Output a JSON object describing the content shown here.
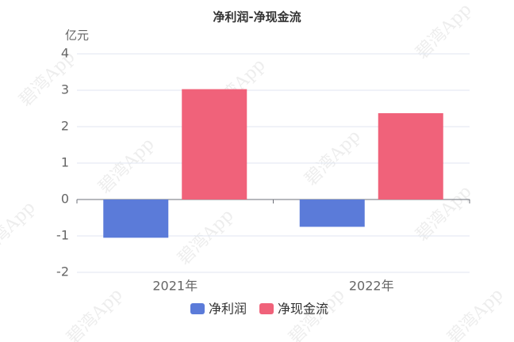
{
  "chart_data": {
    "type": "bar",
    "title": "净利润-净现金流",
    "y_label": "亿元",
    "watermark": "碧湾App",
    "categories": [
      "2021年",
      "2022年"
    ],
    "series": [
      {
        "name": "净利润",
        "color": "#5b7bd9",
        "values": [
          -1.05,
          -0.75
        ]
      },
      {
        "name": "净现金流",
        "color": "#f0627a",
        "values": [
          3.03,
          2.37
        ]
      }
    ],
    "ylim": [
      -2,
      4
    ],
    "yticks": [
      -2,
      -1,
      0,
      1,
      2,
      3,
      4
    ],
    "grid": true,
    "legend": "bottom"
  }
}
